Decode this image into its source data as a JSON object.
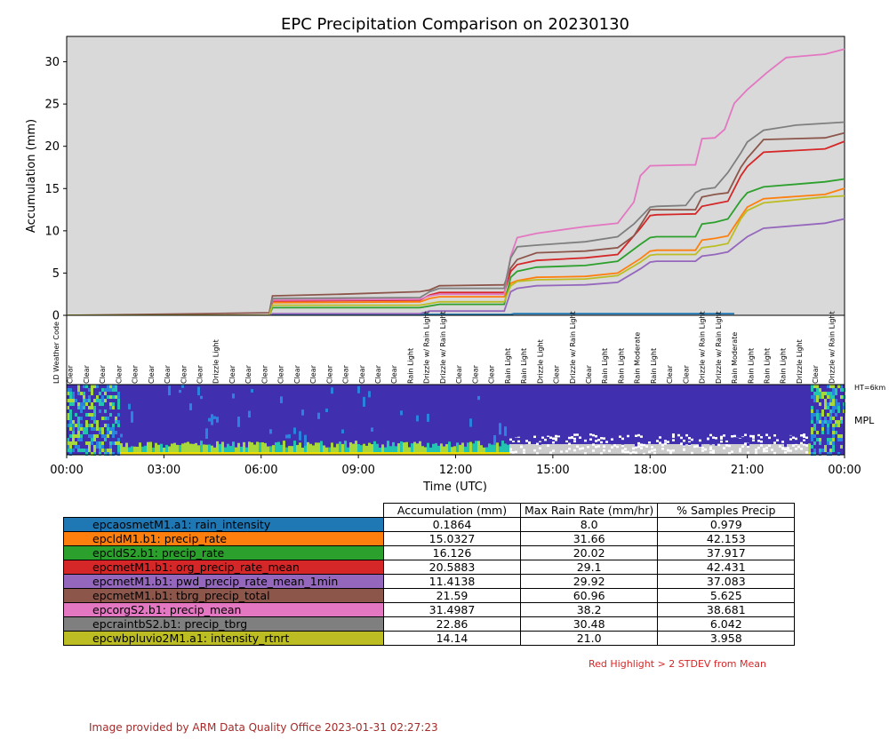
{
  "chart_data": {
    "type": "line",
    "title": "EPC Precipitation Comparison on 20230130",
    "xlabel": "Time (UTC)",
    "ylabel": "Accumulation (mm)",
    "xlim": [
      0,
      24
    ],
    "ylim": [
      0,
      33
    ],
    "x_ticks": [
      0,
      3,
      6,
      9,
      12,
      15,
      18,
      21,
      24
    ],
    "x_tick_labels": [
      "00:00",
      "03:00",
      "06:00",
      "09:00",
      "12:00",
      "15:00",
      "18:00",
      "21:00",
      "00:00"
    ],
    "y_ticks": [
      0,
      5,
      10,
      15,
      20,
      25,
      30
    ],
    "y_tick_labels": [
      "0",
      "5",
      "10",
      "15",
      "20",
      "25",
      "30"
    ],
    "grid": false,
    "background": "#d9d9d9",
    "series": [
      {
        "color": "#1f77b4",
        "x": [
          0,
          6.3,
          6.4,
          13.7,
          13.8,
          20.6
        ],
        "y": [
          0,
          0,
          0.1,
          0.1,
          0.19,
          0.19
        ]
      },
      {
        "color": "#ff7f0e",
        "x": [
          0,
          6.25,
          6.35,
          10.9,
          11.2,
          11.5,
          13.5,
          13.7,
          13.9,
          14.5,
          16,
          17,
          17.7,
          18,
          18.2,
          19.4,
          19.6,
          20,
          20.4,
          20.8,
          21,
          21.5,
          23.4,
          24
        ],
        "y": [
          0,
          0,
          1.5,
          1.6,
          2,
          2.2,
          2.2,
          3.8,
          4.1,
          4.5,
          4.6,
          5,
          6.7,
          7.6,
          7.7,
          7.7,
          8.9,
          9.1,
          9.4,
          11.7,
          12.8,
          13.8,
          14.3,
          15.03
        ]
      },
      {
        "color": "#2ca02c",
        "x": [
          0,
          6.25,
          6.35,
          10.9,
          11.2,
          11.5,
          13.5,
          13.7,
          13.9,
          14.5,
          16,
          17,
          17.7,
          18,
          18.2,
          19.4,
          19.6,
          20,
          20.4,
          20.8,
          21,
          21.5,
          23.4,
          24
        ],
        "y": [
          0,
          0,
          0.9,
          0.9,
          1.1,
          1.3,
          1.3,
          4.5,
          5.2,
          5.7,
          5.9,
          6.4,
          8.4,
          9.2,
          9.3,
          9.3,
          10.8,
          11,
          11.4,
          13.6,
          14.5,
          15.2,
          15.8,
          16.13
        ]
      },
      {
        "color": "#d62728",
        "x": [
          0,
          6.25,
          6.35,
          10.9,
          11.2,
          11.5,
          13.5,
          13.7,
          13.9,
          14.5,
          16,
          17,
          17.7,
          18,
          18.2,
          19.4,
          19.6,
          20,
          20.4,
          20.8,
          21,
          21.5,
          23.4,
          24
        ],
        "y": [
          0,
          0,
          1.7,
          1.8,
          2.4,
          2.7,
          2.7,
          5.2,
          6,
          6.5,
          6.8,
          7.2,
          10.3,
          11.8,
          11.9,
          12,
          12.9,
          13.2,
          13.5,
          16.5,
          17.6,
          19.3,
          19.7,
          20.59
        ]
      },
      {
        "color": "#9467bd",
        "x": [
          0,
          6.25,
          6.35,
          10.9,
          11.2,
          11.5,
          13.5,
          13.7,
          13.9,
          14.5,
          16,
          17,
          17.7,
          18,
          18.2,
          19.4,
          19.6,
          20,
          20.4,
          20.8,
          21,
          21.5,
          23.4,
          24
        ],
        "y": [
          0,
          0,
          0.2,
          0.2,
          0.5,
          0.5,
          0.5,
          2.8,
          3.2,
          3.5,
          3.6,
          3.9,
          5.5,
          6.3,
          6.4,
          6.4,
          7,
          7.2,
          7.5,
          8.7,
          9.3,
          10.3,
          10.9,
          11.41
        ]
      },
      {
        "color": "#8c564b",
        "x": [
          0,
          4.3,
          6.25,
          6.35,
          8.5,
          10.9,
          11.2,
          11.5,
          13.5,
          13.7,
          13.9,
          14.5,
          16,
          17,
          17.5,
          18,
          18.2,
          19.4,
          19.6,
          20,
          20.4,
          20.8,
          21,
          21.5,
          23.4,
          24
        ],
        "y": [
          0,
          0.2,
          0.3,
          2.3,
          2.5,
          2.8,
          3,
          3.5,
          3.6,
          5.6,
          6.6,
          7.4,
          7.6,
          8,
          9.4,
          12.5,
          12.5,
          12.5,
          14,
          14.3,
          14.5,
          17.5,
          18.6,
          20.8,
          21,
          21.59
        ]
      },
      {
        "color": "#e377c2",
        "x": [
          0,
          6.25,
          6.35,
          10.9,
          11.2,
          11.5,
          13.5,
          13.7,
          13.9,
          14.5,
          16,
          17,
          17.5,
          17.7,
          18,
          19.2,
          19.4,
          19.6,
          20,
          20.3,
          20.6,
          21,
          21.6,
          22.2,
          23.4,
          24
        ],
        "y": [
          0,
          0,
          1.8,
          1.9,
          2.3,
          2.5,
          2.5,
          7,
          9.2,
          9.7,
          10.5,
          10.9,
          13.4,
          16.5,
          17.7,
          17.8,
          17.8,
          20.9,
          21,
          22,
          25.1,
          26.7,
          28.7,
          30.5,
          30.9,
          31.5
        ]
      },
      {
        "color": "#7f7f7f",
        "x": [
          0,
          6.25,
          6.35,
          10.9,
          11.2,
          11.5,
          13.5,
          13.7,
          13.9,
          14.5,
          16,
          17,
          17.5,
          18,
          18.2,
          19.1,
          19.4,
          19.6,
          20,
          20.4,
          20.8,
          21,
          21.5,
          22.5,
          24
        ],
        "y": [
          0,
          0,
          2,
          2.1,
          2.8,
          3.2,
          3.2,
          6.8,
          8.1,
          8.3,
          8.7,
          9.3,
          10.8,
          12.8,
          12.9,
          13,
          14.5,
          14.9,
          15.1,
          16.9,
          19.2,
          20.5,
          21.9,
          22.5,
          22.86
        ]
      },
      {
        "color": "#bcbd22",
        "x": [
          0,
          6.25,
          6.35,
          10.9,
          11.2,
          11.5,
          13.5,
          13.7,
          13.9,
          14.5,
          16,
          17,
          17.7,
          18,
          18.2,
          19.4,
          19.6,
          20,
          20.4,
          20.8,
          21,
          21.5,
          23.4,
          24
        ],
        "y": [
          0,
          0,
          1.2,
          1.2,
          1.4,
          1.6,
          1.6,
          3.5,
          4,
          4.2,
          4.3,
          4.7,
          6.3,
          7.1,
          7.2,
          7.2,
          8,
          8.2,
          8.5,
          11.4,
          12.4,
          13.3,
          14,
          14.14
        ]
      }
    ],
    "weather_codes": {
      "label": "LD Weather Code",
      "items": [
        {
          "t": 0.1,
          "label": "Clear"
        },
        {
          "t": 0.6,
          "label": "Clear"
        },
        {
          "t": 1.1,
          "label": "Clear"
        },
        {
          "t": 1.6,
          "label": "Clear"
        },
        {
          "t": 2.1,
          "label": "Clear"
        },
        {
          "t": 2.6,
          "label": "Clear"
        },
        {
          "t": 3.1,
          "label": "Clear"
        },
        {
          "t": 3.6,
          "label": "Clear"
        },
        {
          "t": 4.1,
          "label": "Clear"
        },
        {
          "t": 4.6,
          "label": "Drizzle Light"
        },
        {
          "t": 5.1,
          "label": "Clear"
        },
        {
          "t": 5.6,
          "label": "Clear"
        },
        {
          "t": 6.1,
          "label": "Clear"
        },
        {
          "t": 6.6,
          "label": "Clear"
        },
        {
          "t": 7.1,
          "label": "Clear"
        },
        {
          "t": 7.6,
          "label": "Clear"
        },
        {
          "t": 8.1,
          "label": "Clear"
        },
        {
          "t": 8.6,
          "label": "Clear"
        },
        {
          "t": 9.1,
          "label": "Clear"
        },
        {
          "t": 9.6,
          "label": "Clear"
        },
        {
          "t": 10.1,
          "label": "Clear"
        },
        {
          "t": 10.6,
          "label": "Rain Light"
        },
        {
          "t": 11.1,
          "label": "Drizzle w/ Rain Light"
        },
        {
          "t": 11.6,
          "label": "Drizzle w/ Rain Light"
        },
        {
          "t": 12.1,
          "label": "Clear"
        },
        {
          "t": 12.6,
          "label": "Clear"
        },
        {
          "t": 13.1,
          "label": "Clear"
        },
        {
          "t": 13.6,
          "label": "Rain Light"
        },
        {
          "t": 14.1,
          "label": "Rain Light"
        },
        {
          "t": 14.6,
          "label": "Drizzle Light"
        },
        {
          "t": 15.1,
          "label": "Clear"
        },
        {
          "t": 15.6,
          "label": "Drizzle w/ Rain Light"
        },
        {
          "t": 16.1,
          "label": "Clear"
        },
        {
          "t": 16.6,
          "label": "Rain Light"
        },
        {
          "t": 17.1,
          "label": "Rain Light"
        },
        {
          "t": 17.6,
          "label": "Rain Moderate"
        },
        {
          "t": 18.1,
          "label": "Rain Light"
        },
        {
          "t": 18.6,
          "label": "Clear"
        },
        {
          "t": 19.1,
          "label": "Clear"
        },
        {
          "t": 19.6,
          "label": "Drizzle w/ Rain Light"
        },
        {
          "t": 20.1,
          "label": "Drizzle w/ Rain Light"
        },
        {
          "t": 20.6,
          "label": "Rain Moderate"
        },
        {
          "t": 21.1,
          "label": "Rain Light"
        },
        {
          "t": 21.6,
          "label": "Rain Light"
        },
        {
          "t": 22.1,
          "label": "Rain Light"
        },
        {
          "t": 22.6,
          "label": "Drizzle Light"
        },
        {
          "t": 23.1,
          "label": "Clear"
        },
        {
          "t": 23.6,
          "label": "Drizzle w/ Rain Light"
        }
      ]
    },
    "mpl": {
      "label": "MPL",
      "height_label": "HT=6km",
      "colors": [
        "#4030b0",
        "#2b83e0",
        "#22c4b0",
        "#a8d83a",
        "#f0e000"
      ]
    }
  },
  "table": {
    "headers": [
      "Accumulation (mm)",
      "Max Rain Rate (mm/hr)",
      "% Samples Precip"
    ],
    "rows": [
      {
        "label": "epcaosmetM1.a1: rain_intensity",
        "color": "#1f77b4",
        "values": [
          "0.1864",
          "8.0",
          "0.979"
        ]
      },
      {
        "label": "epcldM1.b1: precip_rate",
        "color": "#ff7f0e",
        "values": [
          "15.0327",
          "31.66",
          "42.153"
        ]
      },
      {
        "label": "epcldS2.b1: precip_rate",
        "color": "#2ca02c",
        "values": [
          "16.126",
          "20.02",
          "37.917"
        ]
      },
      {
        "label": "epcmetM1.b1: org_precip_rate_mean",
        "color": "#d62728",
        "values": [
          "20.5883",
          "29.1",
          "42.431"
        ]
      },
      {
        "label": "epcmetM1.b1: pwd_precip_rate_mean_1min",
        "color": "#9467bd",
        "values": [
          "11.4138",
          "29.92",
          "37.083"
        ]
      },
      {
        "label": "epcmetM1.b1: tbrg_precip_total",
        "color": "#8c564b",
        "values": [
          "21.59",
          "60.96",
          "5.625"
        ]
      },
      {
        "label": "epcorgS2.b1: precip_mean",
        "color": "#e377c2",
        "values": [
          "31.4987",
          "38.2",
          "38.681"
        ]
      },
      {
        "label": "epcraintbS2.b1: precip_tbrg",
        "color": "#7f7f7f",
        "values": [
          "22.86",
          "30.48",
          "6.042"
        ]
      },
      {
        "label": "epcwbpluvio2M1.a1: intensity_rtnrt",
        "color": "#bcbd22",
        "values": [
          "14.14",
          "21.0",
          "3.958"
        ]
      }
    ]
  },
  "footnote": "Red Highlight > 2 STDEV from Mean",
  "credit": "Image provided by ARM Data Quality Office 2023-01-31 02:27:23"
}
